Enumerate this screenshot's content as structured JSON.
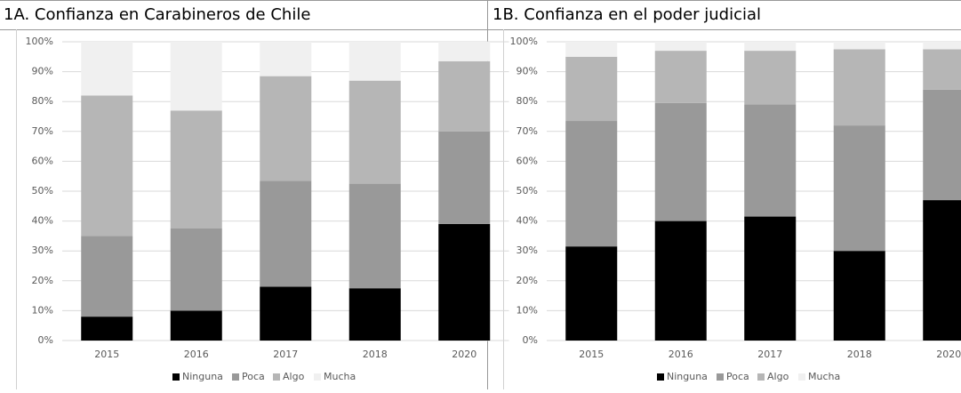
{
  "chart_data": [
    {
      "type": "stacked_bar",
      "title": "1A. Confianza en Carabineros de Chile",
      "categories": [
        "2015",
        "2016",
        "2017",
        "2018",
        "2020"
      ],
      "series": [
        {
          "name": "Ninguna",
          "color": "#000000",
          "values": [
            8,
            10,
            18,
            17.5,
            39
          ]
        },
        {
          "name": "Poca",
          "color": "#999999",
          "values": [
            27,
            27.5,
            35.5,
            35,
            31
          ]
        },
        {
          "name": "Algo",
          "color": "#b6b6b6",
          "values": [
            47,
            39.5,
            35,
            34.5,
            23.5
          ]
        },
        {
          "name": "Mucha",
          "color": "#f0f0f0",
          "values": [
            18,
            23,
            11.5,
            13,
            6.5
          ]
        }
      ],
      "ylim": [
        0,
        100
      ],
      "yticks": [
        {
          "value": 0,
          "label": "0%"
        },
        {
          "value": 10,
          "label": "10%"
        },
        {
          "value": 20,
          "label": "20%"
        },
        {
          "value": 30,
          "label": "30%"
        },
        {
          "value": 40,
          "label": "40%"
        },
        {
          "value": 50,
          "label": "50%"
        },
        {
          "value": 60,
          "label": "60%"
        },
        {
          "value": 70,
          "label": "70%"
        },
        {
          "value": 80,
          "label": "80%"
        },
        {
          "value": 90,
          "label": "90%"
        },
        {
          "value": 100,
          "label": "100%"
        }
      ],
      "grid": true,
      "legend": "bottom"
    },
    {
      "type": "stacked_bar",
      "title": "1B. Confianza en el poder judicial",
      "categories": [
        "2015",
        "2016",
        "2017",
        "2018",
        "2020"
      ],
      "series": [
        {
          "name": "Ninguna",
          "color": "#000000",
          "values": [
            31.5,
            40,
            41.5,
            30,
            47
          ]
        },
        {
          "name": "Poca",
          "color": "#999999",
          "values": [
            42,
            39.5,
            37.5,
            42,
            37
          ]
        },
        {
          "name": "Algo",
          "color": "#b6b6b6",
          "values": [
            21.5,
            17.5,
            18,
            25.5,
            13.5
          ]
        },
        {
          "name": "Mucha",
          "color": "#f0f0f0",
          "values": [
            5,
            3,
            3,
            2.5,
            2.5
          ]
        }
      ],
      "ylim": [
        0,
        100
      ],
      "yticks": [
        {
          "value": 0,
          "label": "0%"
        },
        {
          "value": 10,
          "label": "10%"
        },
        {
          "value": 20,
          "label": "20%"
        },
        {
          "value": 30,
          "label": "30%"
        },
        {
          "value": 40,
          "label": "40%"
        },
        {
          "value": 50,
          "label": "50%"
        },
        {
          "value": 60,
          "label": "60%"
        },
        {
          "value": 70,
          "label": "70%"
        },
        {
          "value": 80,
          "label": "80%"
        },
        {
          "value": 90,
          "label": "90%"
        },
        {
          "value": 100,
          "label": "100%"
        }
      ],
      "grid": true,
      "legend": "bottom"
    }
  ]
}
